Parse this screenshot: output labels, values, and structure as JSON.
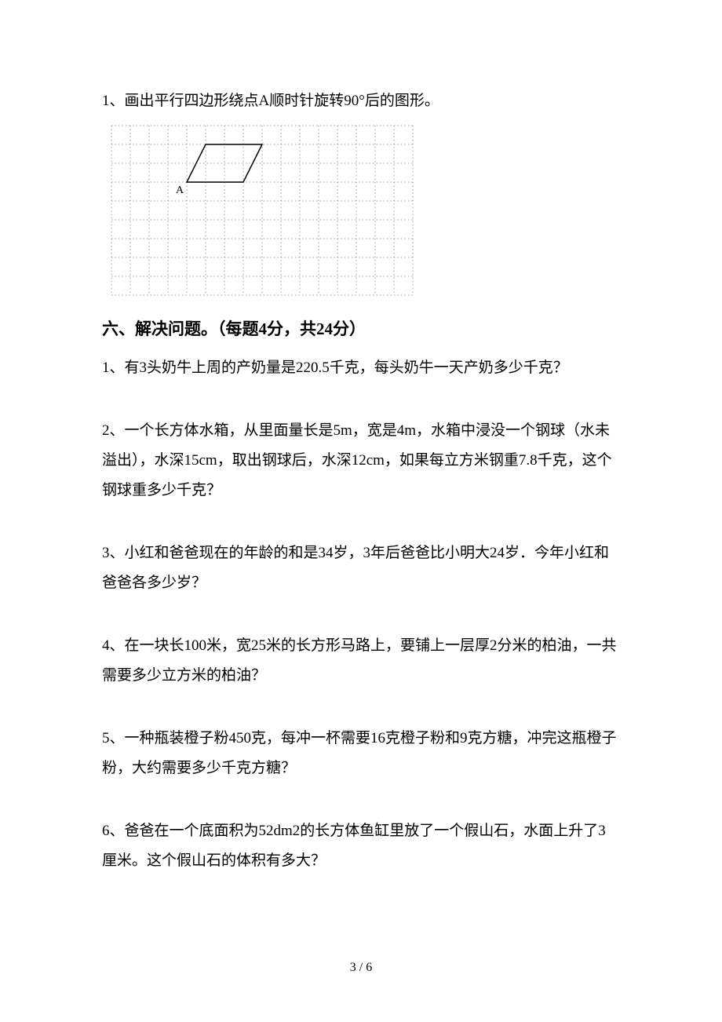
{
  "q1_intro": "1、画出平行四边形绕点A顺时针旋转90°后的图形。",
  "grid": {
    "cols": 16,
    "rows": 9,
    "cell": 24,
    "grid_color": "#888888",
    "dash": "1.5,3",
    "stroke_width": 0.8,
    "parallelogram": {
      "stroke": "#000000",
      "stroke_width": 1.5,
      "A": {
        "col": 4,
        "row": 3
      },
      "pts": [
        [
          4,
          3
        ],
        [
          7,
          3
        ],
        [
          8,
          1
        ],
        [
          5,
          1
        ]
      ],
      "label": "A",
      "label_fontsize": 14
    }
  },
  "section_heading": "六、解决问题。（每题4分，共24分）",
  "problems": {
    "p1": "1、有3头奶牛上周的产奶量是220.5千克，每头奶牛一天产奶多少千克？",
    "p2": "2、一个长方体水箱，从里面量长是5m，宽是4m，水箱中浸没一个钢球（水未溢出），水深15cm，取出钢球后，水深12cm，如果每立方米钢重7.8千克，这个钢球重多少千克？",
    "p3": "3、小红和爸爸现在的年龄的和是34岁，3年后爸爸比小明大24岁．今年小红和爸爸各多少岁？",
    "p4": "4、在一块长100米，宽25米的长方形马路上，要铺上一层厚2分米的柏油，一共需要多少立方米的柏油？",
    "p5": "5、一种瓶装橙子粉450克，每冲一杯需要16克橙子粉和9克方糖，冲完这瓶橙子粉，大约需要多少千克方糖？",
    "p6": "6、爸爸在一个底面积为52dm2的长方体鱼缸里放了一个假山石，水面上升了3厘米。这个假山石的体积有多大？"
  },
  "footer": "3 / 6"
}
